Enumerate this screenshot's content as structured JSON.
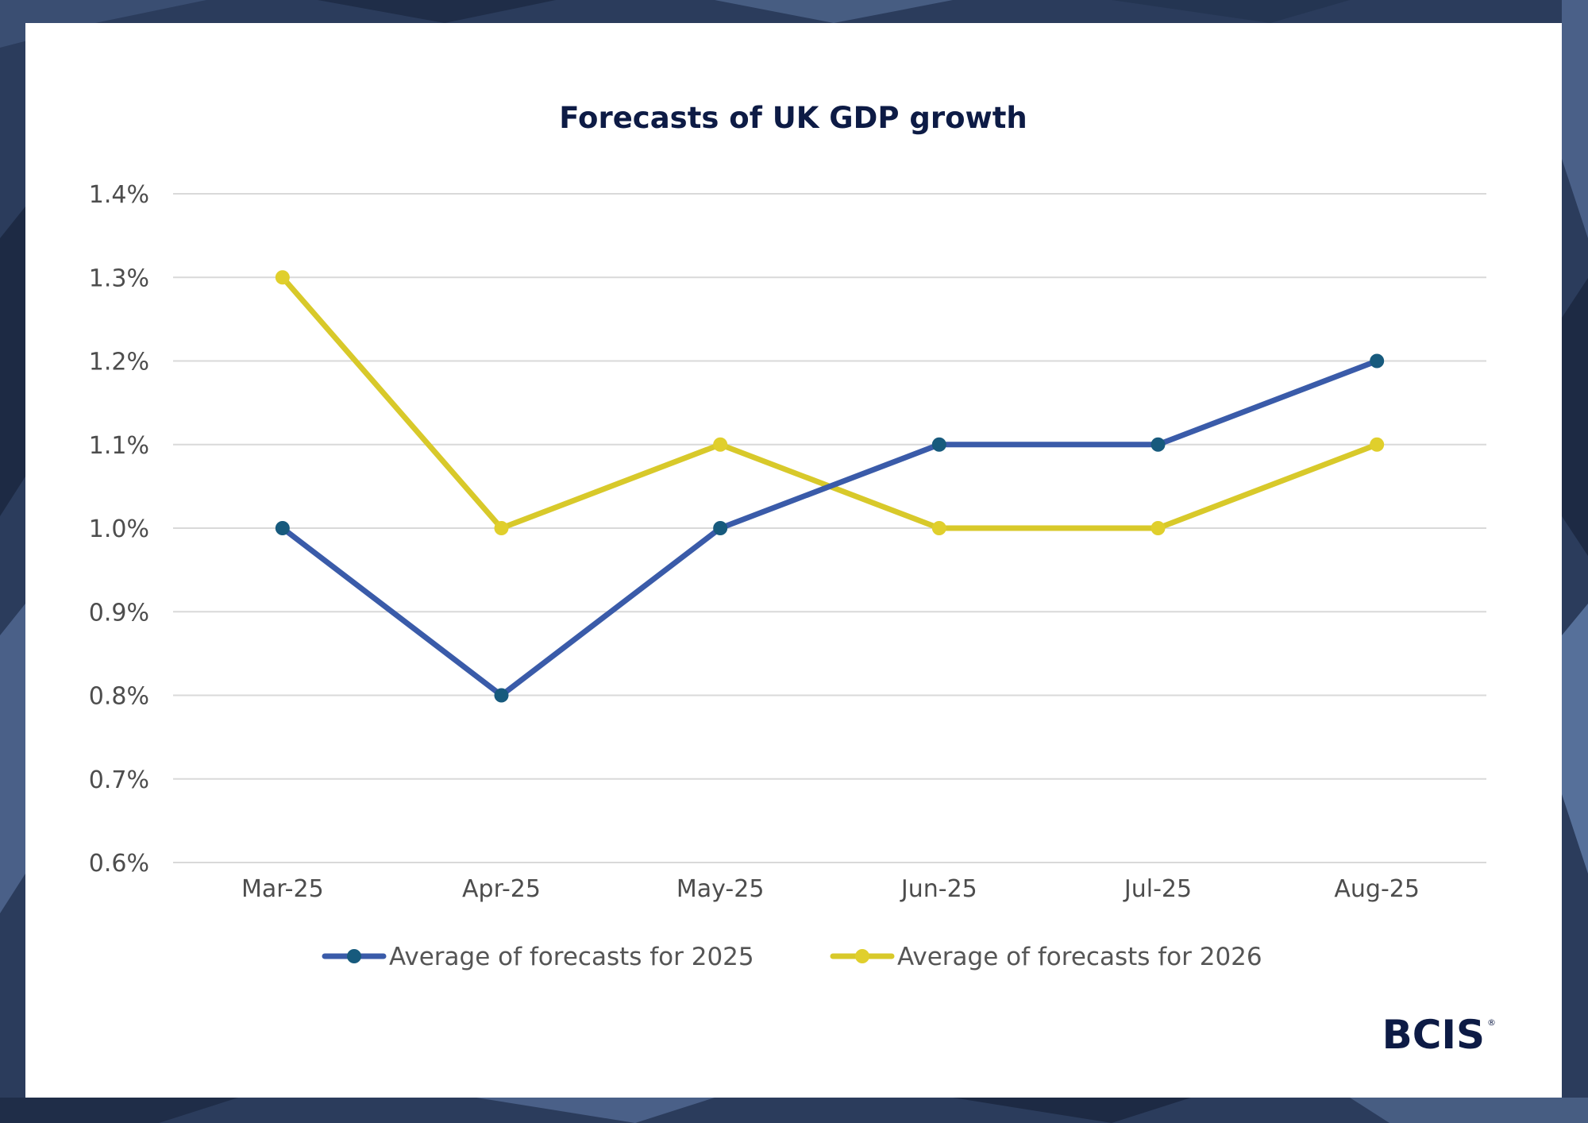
{
  "chart_data": {
    "type": "line",
    "title": "Forecasts of UK GDP growth",
    "xlabel": "",
    "ylabel": "",
    "categories": [
      "Mar-25",
      "Apr-25",
      "May-25",
      "Jun-25",
      "Jul-25",
      "Aug-25"
    ],
    "y_ticks": [
      "0.6%",
      "0.7%",
      "0.8%",
      "0.9%",
      "1.0%",
      "1.1%",
      "1.2%",
      "1.3%",
      "1.4%"
    ],
    "ylim": [
      0.6,
      1.4
    ],
    "grid": true,
    "legend_position": "bottom",
    "series": [
      {
        "name": "Average of forecasts for 2025",
        "values": [
          1.0,
          0.8,
          1.0,
          1.1,
          1.1,
          1.2
        ],
        "line_color": "#3a5ba9",
        "marker_color": "#175a7d"
      },
      {
        "name": "Average of forecasts for 2026",
        "values": [
          1.3,
          1.0,
          1.1,
          1.0,
          1.0,
          1.1
        ],
        "line_color": "#d8c92a",
        "marker_color": "#e0cf2c"
      }
    ]
  },
  "logo": {
    "text": "BCIS",
    "mark": "®"
  },
  "colors": {
    "background": "#2b3c5c",
    "card": "#ffffff",
    "title": "#0d1b45",
    "grid": "#d9d9d9"
  }
}
